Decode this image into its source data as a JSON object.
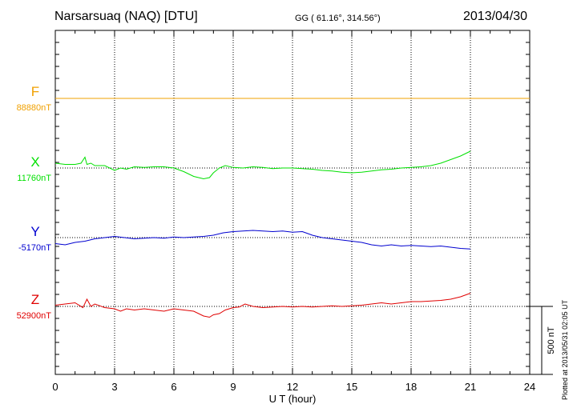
{
  "header": {
    "title": "Narsarsuaq (NAQ)  [DTU]",
    "coords": "GG ( 61.16°, 314.56°)",
    "date": "2013/04/30"
  },
  "footer": {
    "plotted": "Plotted at 2013/05/31 02:05 UT"
  },
  "scale_label": "500 nT",
  "chart_data": {
    "type": "line",
    "title": "Narsarsuaq (NAQ)  [DTU]",
    "xlabel": "U T (hour)",
    "xlim": [
      0,
      24
    ],
    "xticks": [
      "0",
      "3",
      "6",
      "9",
      "12",
      "15",
      "18",
      "21",
      "24"
    ],
    "grid": true,
    "scale_bar_nT": 500,
    "series": [
      {
        "name": "F",
        "baseline_label": "88880nT",
        "baseline_nT": 88880,
        "color": "#f0a000",
        "x": [
          0,
          24
        ],
        "dev": [
          0,
          0
        ]
      },
      {
        "name": "X",
        "baseline_label": "11760nT",
        "baseline_nT": 11760,
        "color": "#00e000",
        "x": [
          0,
          0.5,
          1,
          1.3,
          1.5,
          1.6,
          1.8,
          2,
          2.5,
          3,
          3.3,
          3.6,
          4,
          4.5,
          5,
          5.5,
          6,
          6.5,
          7,
          7.5,
          7.8,
          8,
          8.3,
          8.6,
          9,
          9.5,
          10,
          10.5,
          11,
          11.5,
          12,
          12.5,
          13,
          13.5,
          14,
          14.5,
          15,
          15.5,
          16,
          16.5,
          17,
          17.5,
          18,
          18.5,
          19,
          19.5,
          20,
          20.5,
          21
        ],
        "dev": [
          40,
          30,
          30,
          40,
          90,
          30,
          40,
          20,
          20,
          -20,
          0,
          -10,
          10,
          5,
          10,
          10,
          0,
          -30,
          -70,
          -90,
          -80,
          -40,
          0,
          20,
          5,
          0,
          10,
          5,
          -5,
          0,
          0,
          -5,
          -10,
          -20,
          -25,
          -35,
          -40,
          -35,
          -25,
          -15,
          -10,
          0,
          5,
          10,
          20,
          40,
          70,
          100,
          140
        ]
      },
      {
        "name": "Y",
        "baseline_label": "-5170nT",
        "baseline_nT": -5170,
        "color": "#0000d0",
        "x": [
          0,
          0.5,
          1,
          1.5,
          2,
          2.5,
          3,
          3.5,
          4,
          4.5,
          5,
          5.5,
          6,
          6.5,
          7,
          7.5,
          8,
          8.5,
          9,
          9.5,
          10,
          10.5,
          11,
          11.5,
          12,
          12.5,
          13,
          13.5,
          14,
          14.5,
          15,
          15.5,
          16,
          16.5,
          17,
          17.5,
          18,
          18.5,
          19,
          19.5,
          20,
          20.5,
          21
        ],
        "dev": [
          -50,
          -60,
          -40,
          -30,
          -10,
          0,
          10,
          0,
          -10,
          -5,
          0,
          -5,
          5,
          0,
          5,
          10,
          20,
          40,
          50,
          55,
          60,
          55,
          50,
          55,
          45,
          50,
          20,
          0,
          -10,
          -20,
          -30,
          -40,
          -60,
          -70,
          -60,
          -70,
          -65,
          -70,
          -75,
          -70,
          -80,
          -90,
          -95
        ]
      },
      {
        "name": "Z",
        "baseline_label": "52900nT",
        "baseline_nT": 52900,
        "color": "#e00000",
        "x": [
          0,
          0.5,
          1,
          1.4,
          1.6,
          1.8,
          2,
          2.5,
          3,
          3.3,
          3.6,
          4,
          4.5,
          5,
          5.5,
          6,
          6.5,
          7,
          7.5,
          7.8,
          8,
          8.3,
          8.6,
          9,
          9.3,
          9.6,
          10,
          10.5,
          11,
          11.5,
          12,
          12.5,
          13,
          13.5,
          14,
          14.5,
          15,
          15.5,
          16,
          16.5,
          17,
          17.5,
          18,
          18.5,
          19,
          19.5,
          20,
          20.5,
          21
        ],
        "dev": [
          10,
          20,
          30,
          -10,
          60,
          0,
          20,
          -10,
          -20,
          -40,
          -20,
          -30,
          -20,
          -30,
          -40,
          -20,
          -30,
          -40,
          -80,
          -90,
          -70,
          -60,
          -30,
          -10,
          -5,
          20,
          0,
          -10,
          -5,
          0,
          -5,
          0,
          -5,
          0,
          5,
          0,
          5,
          10,
          20,
          30,
          20,
          30,
          40,
          40,
          45,
          50,
          60,
          80,
          110
        ]
      }
    ]
  }
}
